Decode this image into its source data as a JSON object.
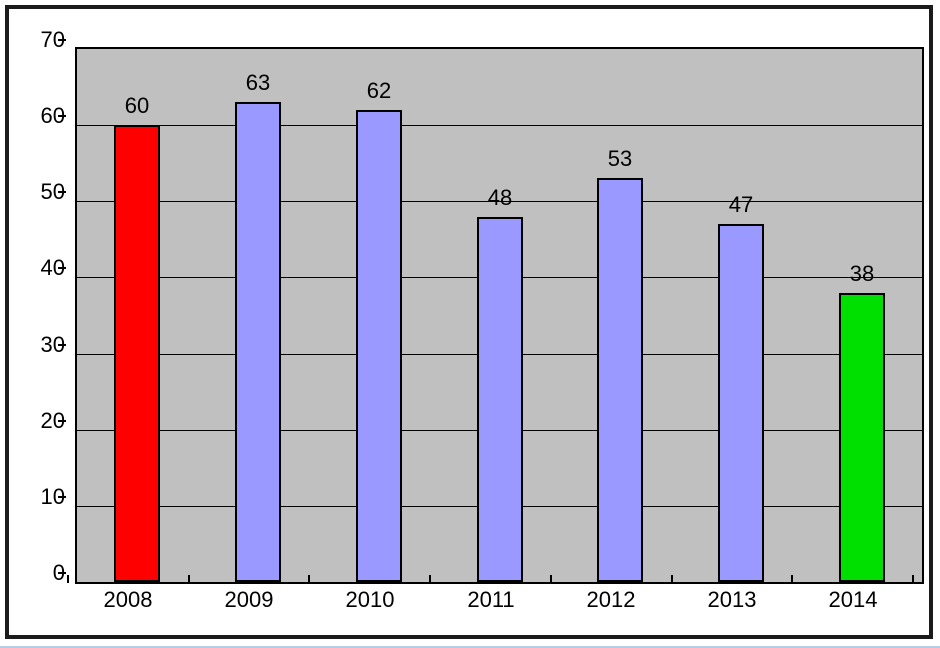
{
  "chart_data": {
    "type": "bar",
    "title": "",
    "xlabel": "",
    "ylabel": "",
    "categories": [
      "2008",
      "2009",
      "2010",
      "2011",
      "2012",
      "2013",
      "2014"
    ],
    "values": [
      60,
      63,
      62,
      48,
      53,
      47,
      38
    ],
    "data_labels": [
      "60",
      "63",
      "62",
      "48",
      "53",
      "47",
      "38"
    ],
    "bar_colors": [
      "#ff0000",
      "#9999ff",
      "#9999ff",
      "#9999ff",
      "#9999ff",
      "#9999ff",
      "#00e000"
    ],
    "yticks": [
      "70",
      "60",
      "50",
      "40",
      "30",
      "20",
      "10",
      "0"
    ],
    "ytick_values": [
      70,
      60,
      50,
      40,
      30,
      20,
      10,
      0
    ],
    "ylim": [
      0,
      70
    ],
    "grid": true,
    "legend": false,
    "colors": {
      "plot_background": "#c0c0c0",
      "grid_color": "#000000",
      "bar_border": "#000000",
      "axis_color": "#000000",
      "frame_border": "#1b1b1b",
      "page_background": "#ffffff",
      "bottom_edge_line": "#b7cde4"
    }
  }
}
